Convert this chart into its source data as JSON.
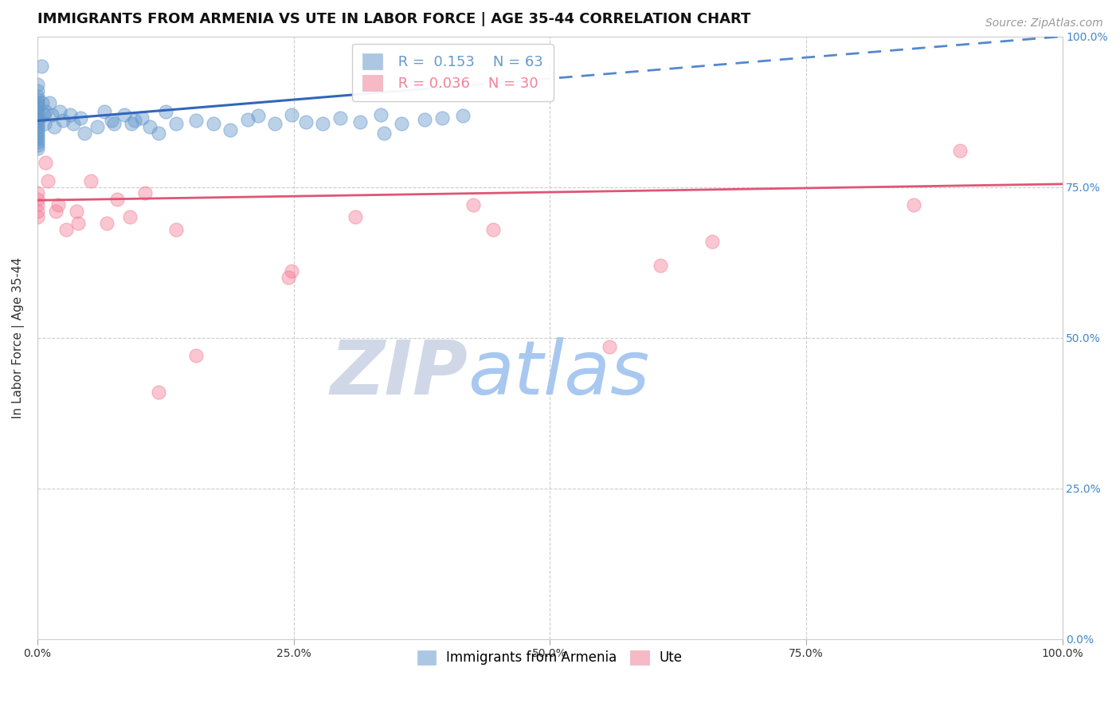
{
  "title": "IMMIGRANTS FROM ARMENIA VS UTE IN LABOR FORCE | AGE 35-44 CORRELATION CHART",
  "source": "Source: ZipAtlas.com",
  "ylabel": "In Labor Force | Age 35-44",
  "xlim": [
    0.0,
    1.0
  ],
  "ylim": [
    0.0,
    1.0
  ],
  "xticks": [
    0.0,
    0.25,
    0.5,
    0.75,
    1.0
  ],
  "yticks": [
    0.0,
    0.25,
    0.5,
    0.75,
    1.0
  ],
  "xtick_labels": [
    "0.0%",
    "25.0%",
    "50.0%",
    "75.0%",
    "100.0%"
  ],
  "ytick_labels": [
    "0.0%",
    "25.0%",
    "50.0%",
    "75.0%",
    "100.0%"
  ],
  "armenia_color": "#6699cc",
  "ute_color": "#f4819a",
  "armenia_R": 0.153,
  "armenia_N": 63,
  "ute_R": 0.036,
  "ute_N": 30,
  "armenia_x": [
    0.0,
    0.0,
    0.0,
    0.0,
    0.0,
    0.0,
    0.0,
    0.0,
    0.0,
    0.0,
    0.0,
    0.0,
    0.0,
    0.0,
    0.0,
    0.0,
    0.0,
    0.0,
    0.0,
    0.0,
    0.004,
    0.005,
    0.006,
    0.007,
    0.008,
    0.012,
    0.014,
    0.016,
    0.022,
    0.025,
    0.032,
    0.035,
    0.042,
    0.046,
    0.058,
    0.065,
    0.072,
    0.075,
    0.085,
    0.092,
    0.095,
    0.102,
    0.11,
    0.118,
    0.125,
    0.135,
    0.155,
    0.172,
    0.188,
    0.205,
    0.215,
    0.232,
    0.248,
    0.262,
    0.278,
    0.295,
    0.315,
    0.335,
    0.355,
    0.378,
    0.338,
    0.395,
    0.415
  ],
  "armenia_y": [
    0.92,
    0.91,
    0.9,
    0.895,
    0.89,
    0.885,
    0.88,
    0.875,
    0.87,
    0.865,
    0.86,
    0.855,
    0.85,
    0.845,
    0.84,
    0.835,
    0.83,
    0.825,
    0.82,
    0.815,
    0.95,
    0.89,
    0.87,
    0.855,
    0.875,
    0.89,
    0.87,
    0.85,
    0.875,
    0.86,
    0.87,
    0.855,
    0.865,
    0.84,
    0.85,
    0.875,
    0.86,
    0.855,
    0.87,
    0.855,
    0.86,
    0.865,
    0.85,
    0.84,
    0.875,
    0.855,
    0.86,
    0.855,
    0.845,
    0.862,
    0.868,
    0.855,
    0.87,
    0.858,
    0.855,
    0.865,
    0.858,
    0.87,
    0.855,
    0.862,
    0.84,
    0.865,
    0.868
  ],
  "ute_x": [
    0.0,
    0.0,
    0.0,
    0.0,
    0.0,
    0.008,
    0.01,
    0.018,
    0.02,
    0.028,
    0.038,
    0.04,
    0.052,
    0.068,
    0.078,
    0.09,
    0.105,
    0.118,
    0.135,
    0.155,
    0.245,
    0.248,
    0.31,
    0.425,
    0.445,
    0.558,
    0.608,
    0.658,
    0.855,
    0.9
  ],
  "ute_y": [
    0.74,
    0.73,
    0.72,
    0.71,
    0.7,
    0.79,
    0.76,
    0.71,
    0.72,
    0.68,
    0.71,
    0.69,
    0.76,
    0.69,
    0.73,
    0.7,
    0.74,
    0.41,
    0.68,
    0.47,
    0.6,
    0.61,
    0.7,
    0.72,
    0.68,
    0.485,
    0.62,
    0.66,
    0.72,
    0.81
  ],
  "armenia_trend_x0": 0.0,
  "armenia_trend_x_solid_end": 0.38,
  "armenia_trend_x1": 1.0,
  "armenia_trend_y0": 0.86,
  "armenia_trend_y1": 1.0,
  "ute_trend_y0": 0.728,
  "ute_trend_y1": 0.755,
  "watermark_zip": "ZIP",
  "watermark_atlas": "atlas",
  "watermark_zip_color": "#d0d8e8",
  "watermark_atlas_color": "#a8c8f0",
  "background_color": "#ffffff",
  "grid_color": "#cccccc",
  "title_fontsize": 13,
  "axis_label_fontsize": 11,
  "tick_fontsize": 10,
  "legend_fontsize": 13,
  "source_fontsize": 10,
  "right_tick_color": "#4488cc",
  "left_tick_color": "#333333"
}
